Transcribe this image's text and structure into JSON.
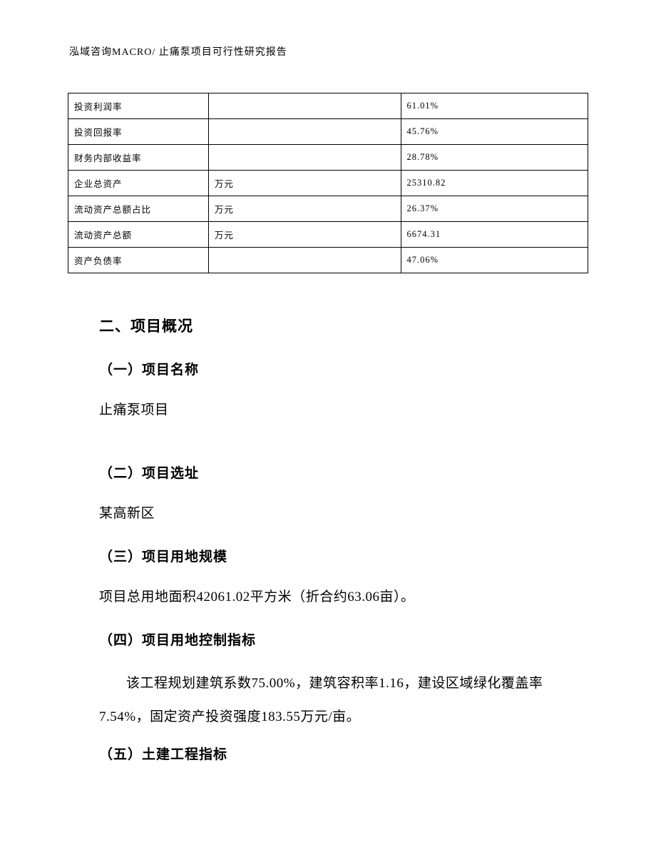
{
  "header": {
    "text": "泓域咨询MACRO/   止痛泵项目可行性研究报告"
  },
  "table": {
    "rows": [
      {
        "label": "投资利润率",
        "unit": "",
        "value": "61.01%"
      },
      {
        "label": "投资回报率",
        "unit": "",
        "value": "45.76%"
      },
      {
        "label": "财务内部收益率",
        "unit": "",
        "value": "28.78%"
      },
      {
        "label": "企业总资产",
        "unit": "万元",
        "value": "25310.82"
      },
      {
        "label": "流动资产总额占比",
        "unit": "万元",
        "value": "26.37%"
      },
      {
        "label": "流动资产总额",
        "unit": "万元",
        "value": "6674.31"
      },
      {
        "label": "资产负债率",
        "unit": "",
        "value": "47.06%"
      }
    ]
  },
  "sections": {
    "main_heading": "二、项目概况",
    "s1": {
      "heading": "（一）项目名称",
      "body": "止痛泵项目"
    },
    "s2": {
      "heading": "（二）项目选址",
      "body": "某高新区"
    },
    "s3": {
      "heading": "（三）项目用地规模",
      "body": "项目总用地面积42061.02平方米（折合约63.06亩）。"
    },
    "s4": {
      "heading": "（四）项目用地控制指标",
      "body": "该工程规划建筑系数75.00%，建筑容积率1.16，建设区域绿化覆盖率7.54%，固定资产投资强度183.55万元/亩。"
    },
    "s5": {
      "heading": "（五）土建工程指标"
    }
  }
}
